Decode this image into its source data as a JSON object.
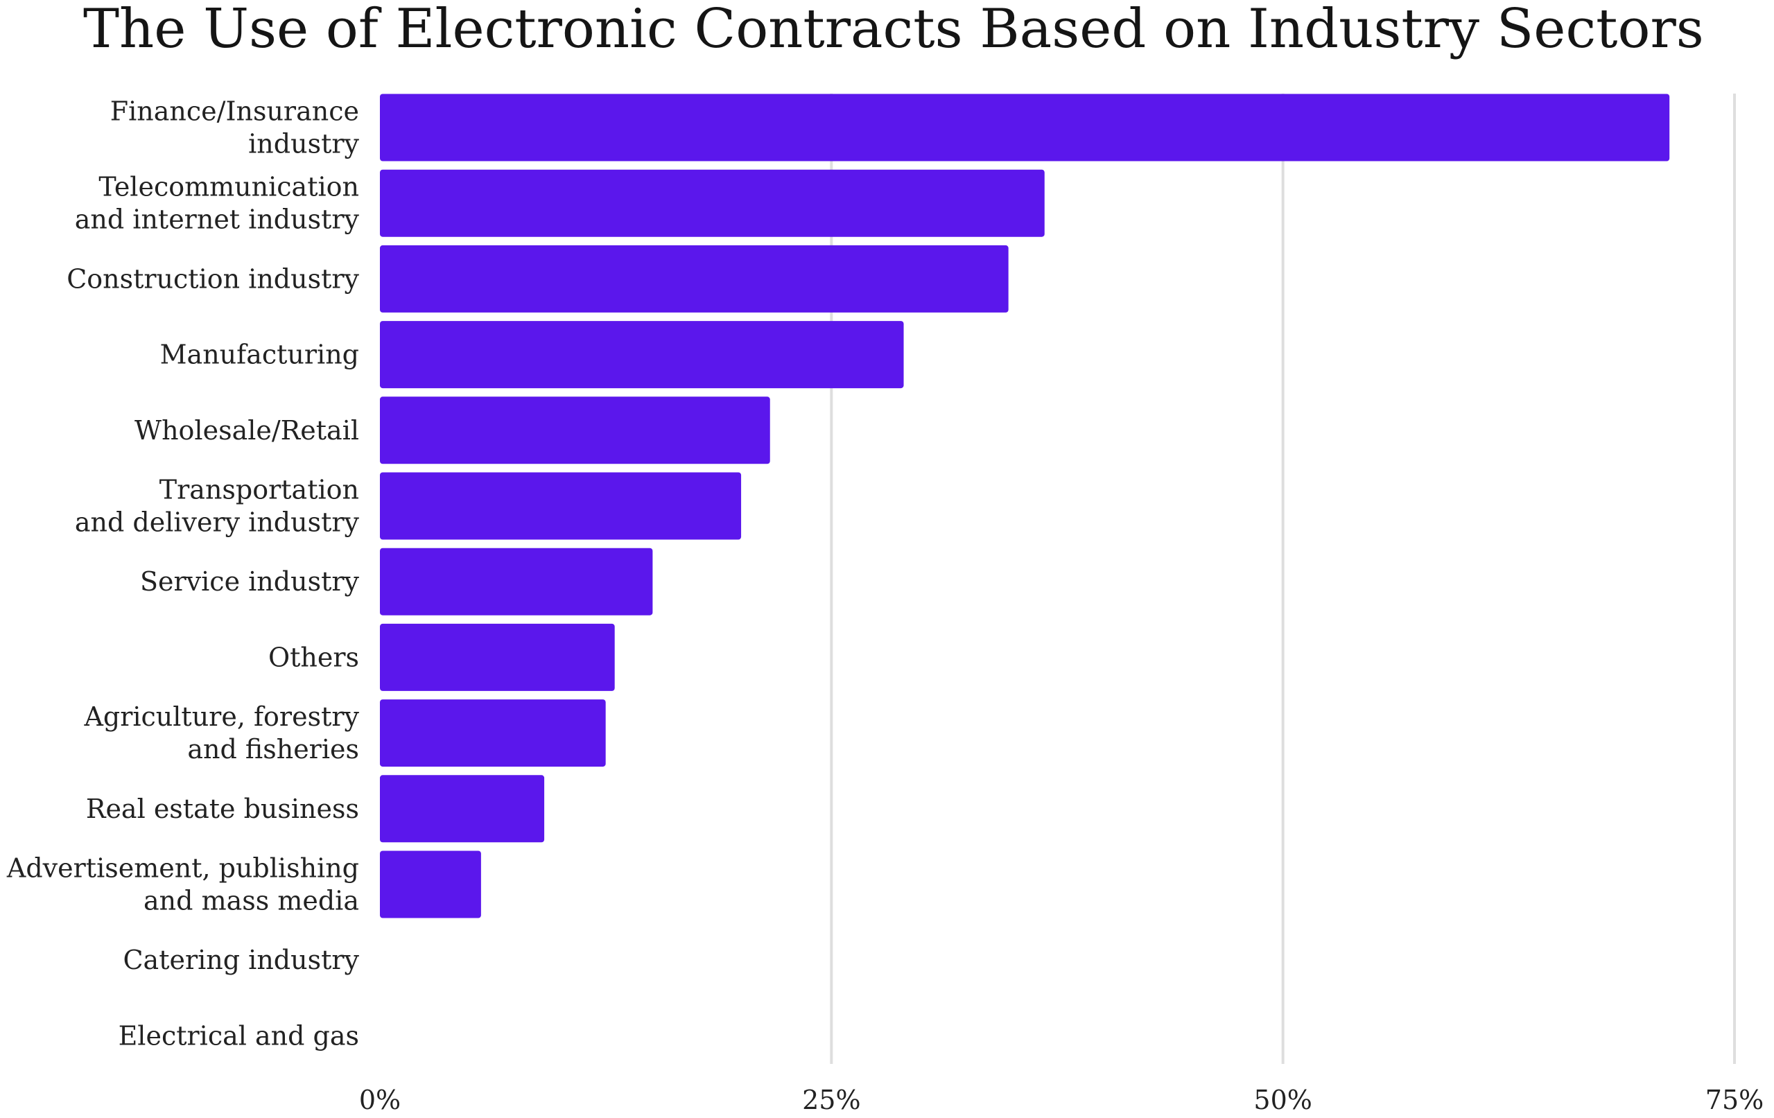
{
  "chart_data": {
    "type": "bar",
    "orientation": "horizontal",
    "title": "The Use of Electronic Contracts Based on Industry Sectors",
    "xlabel": "",
    "ylabel": "",
    "xlim": [
      0,
      75
    ],
    "x_ticks": [
      0,
      25,
      50,
      75
    ],
    "x_tick_labels": [
      "0%",
      "25%",
      "50%",
      "75%"
    ],
    "grid": true,
    "legend": "none",
    "bar_color": "#5b17ec",
    "categories": [
      [
        "Finance/Insurance",
        "industry"
      ],
      [
        "Telecommunication",
        "and internet industry"
      ],
      [
        "Construction industry"
      ],
      [
        "Manufacturing"
      ],
      [
        "Wholesale/Retail"
      ],
      [
        "Transportation",
        "and delivery industry"
      ],
      [
        "Service industry"
      ],
      [
        "Others"
      ],
      [
        "Agriculture, forestry",
        "and fisheries"
      ],
      [
        "Real estate business"
      ],
      [
        "Advertisement, publishing",
        "and mass media"
      ],
      [
        "Catering industry"
      ],
      [
        "Electrical and gas"
      ]
    ],
    "values": [
      71.4,
      36.8,
      34.8,
      29.0,
      21.6,
      20.0,
      15.1,
      13.0,
      12.5,
      9.1,
      5.6,
      0,
      0
    ]
  }
}
